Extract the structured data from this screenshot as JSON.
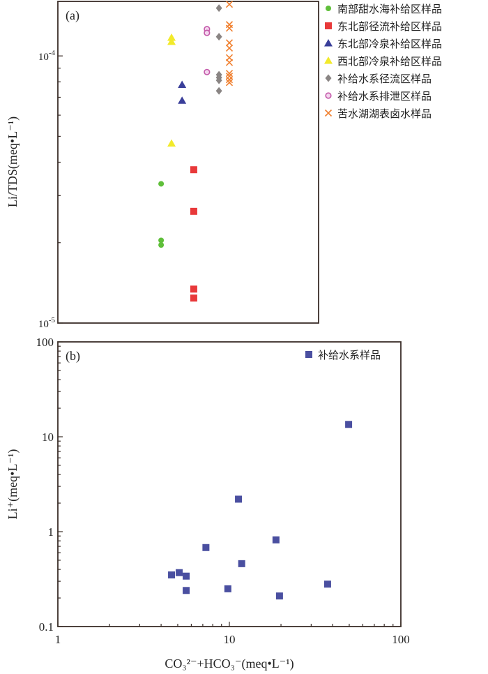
{
  "chart_data": [
    {
      "type": "scatter",
      "panel_label": "(a)",
      "ylabel": "Li/TDS(meq•L⁻¹)",
      "yscale": "log",
      "ylim": [
        1e-05,
        0.00016
      ],
      "xlim": [
        1,
        100
      ],
      "y_ticks": [
        {
          "value": 0.0001,
          "label_base": "10",
          "label_exp": "-4"
        },
        {
          "value": 1e-05,
          "label_base": "10",
          "label_exp": "-5"
        }
      ],
      "legend_position": "top-right",
      "series": [
        {
          "name": "南部甜水海补给区样品",
          "marker": "circle",
          "color": "#5fbf3a",
          "points": [
            [
              4.0,
              3.32e-05
            ],
            [
              4.0,
              2.04e-05
            ],
            [
              4.0,
              1.96e-05
            ]
          ]
        },
        {
          "name": "东北部径流补给区样品",
          "marker": "square",
          "color": "#e8393a",
          "points": [
            [
              6.2,
              3.75e-05
            ],
            [
              6.2,
              2.62e-05
            ],
            [
              6.2,
              1.34e-05
            ],
            [
              6.2,
              1.24e-05
            ]
          ]
        },
        {
          "name": "东北部冷泉补给区样品",
          "marker": "triangle",
          "color": "#3a3f9a",
          "points": [
            [
              5.3,
              7.8e-05
            ],
            [
              5.3,
              6.8e-05
            ]
          ]
        },
        {
          "name": "西北部冷泉补给区样品",
          "marker": "triangle",
          "color": "#f2ea2a",
          "points": [
            [
              4.6,
              0.000117
            ],
            [
              4.6,
              0.000113
            ],
            [
              4.6,
              4.7e-05
            ]
          ]
        },
        {
          "name": "补给水系径流区样品",
          "marker": "diamond",
          "color": "#8a8584",
          "points": [
            [
              8.7,
              0.000151
            ],
            [
              8.7,
              0.000118
            ],
            [
              8.7,
              8.5e-05
            ],
            [
              8.7,
              8.3e-05
            ],
            [
              8.7,
              8.1e-05
            ],
            [
              8.7,
              7.4e-05
            ]
          ]
        },
        {
          "name": "补给水系排泄区样品",
          "marker": "circle-open",
          "color": "#c45aaa",
          "points": [
            [
              7.4,
              0.000126
            ],
            [
              7.4,
              0.000122
            ],
            [
              7.4,
              8.7e-05
            ]
          ]
        },
        {
          "name": "苦水湖湖表卤水样品",
          "marker": "x",
          "color": "#f08030",
          "points": [
            [
              10.0,
              0.000156
            ],
            [
              10.0,
              0.000131
            ],
            [
              10.0,
              0.000127
            ],
            [
              10.0,
              0.000112
            ],
            [
              10.0,
              0.000107
            ],
            [
              10.0,
              9.85e-05
            ],
            [
              10.0,
              9.45e-05
            ],
            [
              10.0,
              8.6e-05
            ],
            [
              10.0,
              8.4e-05
            ],
            [
              10.0,
              8.15e-05
            ],
            [
              10.0,
              7.95e-05
            ]
          ]
        }
      ]
    },
    {
      "type": "scatter",
      "panel_label": "(b)",
      "xlabel": "CO₃²⁻+HCO₃⁻(meq•L⁻¹)",
      "ylabel": "Li⁺(meq•L⁻¹)",
      "xscale": "log",
      "yscale": "log",
      "xlim": [
        1,
        100
      ],
      "ylim": [
        0.1,
        100
      ],
      "x_ticks": [
        {
          "value": 1,
          "label": "1"
        },
        {
          "value": 10,
          "label": "10"
        },
        {
          "value": 100,
          "label": "100"
        }
      ],
      "y_ticks": [
        {
          "value": 0.1,
          "label": "0.1"
        },
        {
          "value": 1,
          "label": "1"
        },
        {
          "value": 10,
          "label": "10"
        },
        {
          "value": 100,
          "label": "100"
        }
      ],
      "legend_position": "top-right",
      "series": [
        {
          "name": "补给水系样品",
          "marker": "square",
          "color": "#4a4fa0",
          "points": [
            [
              4.6,
              0.35
            ],
            [
              5.1,
              0.37
            ],
            [
              5.6,
              0.34
            ],
            [
              5.6,
              0.24
            ],
            [
              7.3,
              0.68
            ],
            [
              9.8,
              0.25
            ],
            [
              11.3,
              2.2
            ],
            [
              11.8,
              0.46
            ],
            [
              18.7,
              0.82
            ],
            [
              19.6,
              0.21
            ],
            [
              37.4,
              0.28
            ],
            [
              49.6,
              13.5
            ]
          ]
        }
      ]
    }
  ]
}
